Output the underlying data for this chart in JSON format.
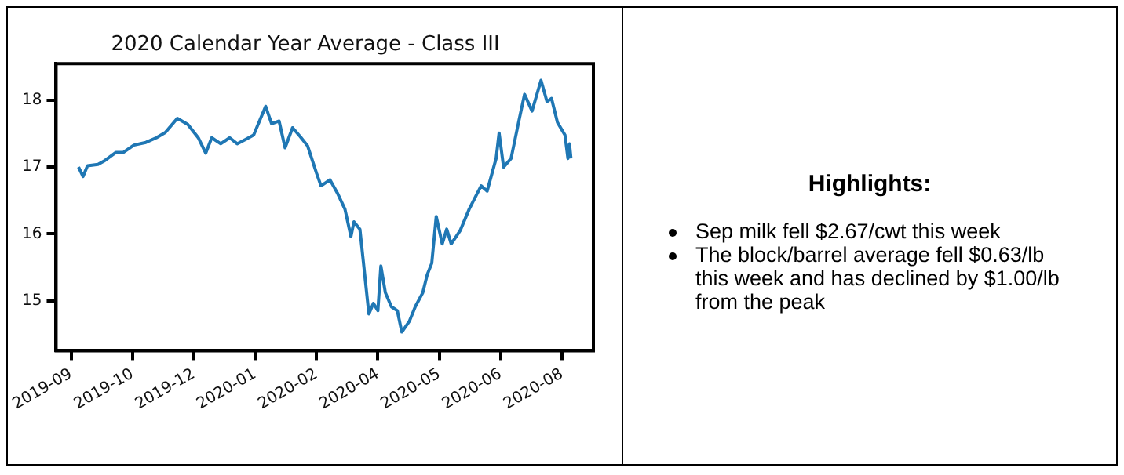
{
  "chart_data": [
    {
      "type": "line",
      "title": "2020 Calendar Year Average - Class III",
      "x": [
        "2019-09-15",
        "2019-09-18",
        "2019-09-21",
        "2019-09-28",
        "2019-10-02",
        "2019-10-10",
        "2019-10-15",
        "2019-10-22",
        "2019-10-30",
        "2019-11-06",
        "2019-11-12",
        "2019-11-20",
        "2019-11-27",
        "2019-12-04",
        "2019-12-09",
        "2019-12-13",
        "2019-12-19",
        "2019-12-25",
        "2019-12-30",
        "2020-01-05",
        "2020-01-10",
        "2020-01-18",
        "2020-01-22",
        "2020-01-27",
        "2020-01-31",
        "2020-02-05",
        "2020-02-10",
        "2020-02-15",
        "2020-02-21",
        "2020-02-24",
        "2020-03-01",
        "2020-03-06",
        "2020-03-11",
        "2020-03-15",
        "2020-03-17",
        "2020-03-21",
        "2020-03-27",
        "2020-03-30",
        "2020-04-02",
        "2020-04-04",
        "2020-04-07",
        "2020-04-11",
        "2020-04-15",
        "2020-04-18",
        "2020-04-23",
        "2020-04-27",
        "2020-05-02",
        "2020-05-05",
        "2020-05-08",
        "2020-05-11",
        "2020-05-15",
        "2020-05-18",
        "2020-05-21",
        "2020-05-27",
        "2020-06-02",
        "2020-06-07",
        "2020-06-10",
        "2020-06-14",
        "2020-06-20",
        "2020-06-22",
        "2020-06-25",
        "2020-06-30",
        "2020-07-05",
        "2020-07-09",
        "2020-07-14",
        "2020-07-20",
        "2020-07-24",
        "2020-07-27",
        "2020-07-31",
        "2020-08-05",
        "2020-08-07",
        "2020-08-08",
        "2020-08-09"
      ],
      "series": [
        {
          "color": "#1f77b4",
          "values": [
            17.0,
            16.86,
            17.02,
            17.04,
            17.09,
            17.22,
            17.22,
            17.33,
            17.37,
            17.44,
            17.52,
            17.73,
            17.64,
            17.44,
            17.21,
            17.44,
            17.35,
            17.44,
            17.35,
            17.42,
            17.48,
            17.91,
            17.65,
            17.69,
            17.29,
            17.59,
            17.46,
            17.32,
            16.91,
            16.72,
            16.81,
            16.61,
            16.37,
            15.96,
            16.18,
            16.07,
            14.8,
            14.96,
            14.85,
            15.52,
            15.12,
            14.91,
            14.85,
            14.53,
            14.69,
            14.91,
            15.12,
            15.39,
            15.56,
            16.26,
            15.85,
            16.07,
            15.85,
            16.05,
            16.37,
            16.59,
            16.72,
            16.64,
            17.13,
            17.51,
            17.0,
            17.13,
            17.67,
            18.09,
            17.84,
            18.3,
            17.98,
            18.03,
            17.67,
            17.48,
            17.13,
            17.35,
            17.13
          ]
        }
      ],
      "xlim": [
        "2019-08-31",
        "2020-08-24"
      ],
      "xticks": [
        {
          "value": "2019-09-10",
          "label": "2019-09"
        },
        {
          "value": "2019-10-21",
          "label": "2019-10"
        },
        {
          "value": "2019-12-01",
          "label": "2019-12"
        },
        {
          "value": "2020-01-11",
          "label": "2020-01"
        },
        {
          "value": "2020-02-21",
          "label": "2020-02"
        },
        {
          "value": "2020-04-02",
          "label": "2020-04"
        },
        {
          "value": "2020-05-13",
          "label": "2020-05"
        },
        {
          "value": "2020-06-23",
          "label": "2020-06"
        },
        {
          "value": "2020-08-03",
          "label": "2020-08"
        }
      ],
      "ylim": [
        14.25,
        18.55
      ],
      "yticks": [
        15,
        16,
        17,
        18
      ],
      "grid": false,
      "legend": false,
      "marker": "none",
      "line_style": "solid"
    },
    {
      "type": "other",
      "title": "Highlights:",
      "annotations": [
        "Sep milk fell $2.67/cwt this week",
        "The block/barrel average fell $0.63/lb this week and has declined by $1.00/lb from the peak"
      ]
    }
  ]
}
